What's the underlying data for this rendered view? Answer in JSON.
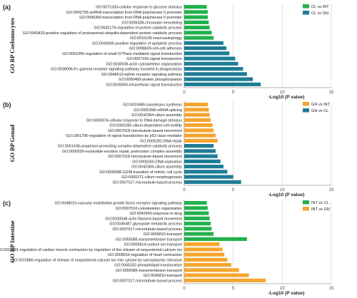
{
  "chart_data": [
    {
      "type": "bar",
      "orientation": "horizontal",
      "panel_label": "(a)",
      "title": "",
      "ylabel": "GO BP Coelomocytes",
      "xlabel": "-Log10 (P value)",
      "xlim": [
        0,
        15
      ],
      "xticks": [
        "0",
        "5",
        "10",
        "15"
      ],
      "grid": true,
      "legend_position": "top-right",
      "series": [
        {
          "name": "CL vs INT",
          "color": "#22b14c"
        },
        {
          "name": "CL vs GN",
          "color": "#1f7d96"
        }
      ],
      "bars": [
        {
          "label": "GO:0071333-cellular response to glucose stimulus",
          "value": 2.3,
          "series": 0
        },
        {
          "label": "GO:0042795-snRNA transcription from RNA polymerase II promoter",
          "value": 2.4,
          "series": 0
        },
        {
          "label": "GO:0006366-transcription from RNA polymerase II promoter",
          "value": 2.4,
          "series": 0
        },
        {
          "label": "GO:0006338-chromatin remodeling",
          "value": 2.5,
          "series": 0
        },
        {
          "label": "GO:0042176-regulation of protein catabolic process",
          "value": 2.6,
          "series": 0
        },
        {
          "label": "GO:0043433-positive regulation of proteasomal ubiquitin-dependent protein catabolic process",
          "value": 2.8,
          "series": 0
        },
        {
          "label": "GO:0016236-macroautophagy",
          "value": 3.0,
          "series": 0
        },
        {
          "label": "GO:0043065-positive regulation of apoptotic process",
          "value": 4.0,
          "series": 1
        },
        {
          "label": "GO:0098609-cell-cell adhesion",
          "value": 4.3,
          "series": 1
        },
        {
          "label": "GO:0051056-regulation of small GTPase mediated signal transduction",
          "value": 4.6,
          "series": 1
        },
        {
          "label": "GO:0007165-signal transduction",
          "value": 5.2,
          "series": 1
        },
        {
          "label": "GO:0030036-actin cytoskeleton organization",
          "value": 5.5,
          "series": 1
        },
        {
          "label": "GO:0038096-Fc-gamma receptor signaling pathway involved in phagocytosis",
          "value": 6.0,
          "series": 1
        },
        {
          "label": "GO:0048013-ephrin receptor signaling pathway",
          "value": 6.4,
          "series": 1
        },
        {
          "label": "GO:0006468-protein phosphorylation",
          "value": 7.0,
          "series": 1
        },
        {
          "label": "GO:0035556-intracellular signal transduction",
          "value": 7.8,
          "series": 1
        }
      ]
    },
    {
      "type": "bar",
      "orientation": "horizontal",
      "panel_label": "(b)",
      "title": "",
      "ylabel": "GO BP Gonad",
      "xlabel": "-Log10 (P value)",
      "xlim": [
        0,
        15
      ],
      "xticks": [
        "0",
        "5",
        "10",
        "15"
      ],
      "grid": true,
      "legend_position": "top-right",
      "series": [
        {
          "name": "GN vs INT",
          "color": "#f5a530"
        },
        {
          "name": "GN vs CL",
          "color": "#1f7d96"
        }
      ],
      "bars": [
        {
          "label": "GO:0019985-translesion synthesis",
          "value": 2.4,
          "series": 0
        },
        {
          "label": "GO:0000398-mRNA splicing",
          "value": 2.5,
          "series": 0
        },
        {
          "label": "GO:0042384-cilium assembly",
          "value": 2.6,
          "series": 0
        },
        {
          "label": "GO:0006974-cellular response to DNA damage stimulus",
          "value": 2.7,
          "series": 0
        },
        {
          "label": "GO:0060285-cilium-dependent cell motility",
          "value": 2.9,
          "series": 0
        },
        {
          "label": "GO:0007018-microtubule-based movement",
          "value": 3.0,
          "series": 0
        },
        {
          "label": "GO:1901796-regulation of signal transduction by p53 class mediator",
          "value": 3.2,
          "series": 0
        },
        {
          "label": "GO:0006281-DNA repair",
          "value": 3.4,
          "series": 0
        },
        {
          "label": "GO:0051438-anaphase-promoting complex-dependent catabolic process",
          "value": 3.0,
          "series": 1
        },
        {
          "label": "GO:0000209-nucleotide-excision repair, preincision complex assembly",
          "value": 3.2,
          "series": 1
        },
        {
          "label": "GO:0007018-microtubule-based movement",
          "value": 3.4,
          "series": 1
        },
        {
          "label": "GO:0006260-DNA replication",
          "value": 3.7,
          "series": 1
        },
        {
          "label": "GO:0042384-cilium assembly",
          "value": 4.0,
          "series": 1
        },
        {
          "label": "GO:0000086-G2/M transition of mitotic cell cycle",
          "value": 4.4,
          "series": 1
        },
        {
          "label": "GO:0060271-cilium morphogenesis",
          "value": 5.0,
          "series": 1
        },
        {
          "label": "GO:0007017-microtubule-based process",
          "value": 5.8,
          "series": 1
        }
      ]
    },
    {
      "type": "bar",
      "orientation": "horizontal",
      "panel_label": "(c)",
      "title": "",
      "ylabel": "GO BP Intestine",
      "xlabel": "-Log10 (P value)",
      "xlim": [
        0,
        15
      ],
      "xticks": [
        "0",
        "5",
        "10",
        "15"
      ],
      "grid": true,
      "legend_position": "top-right",
      "series": [
        {
          "name": "INT vs CL",
          "color": "#22b14c"
        },
        {
          "name": "INT vs GN",
          "color": "#f5a530"
        }
      ],
      "bars": [
        {
          "label": "GO:0048010-vascular endothelial growth factor receptor signaling pathway",
          "value": 2.3,
          "series": 0
        },
        {
          "label": "GO:0007010-cytoskeleton organization",
          "value": 2.4,
          "series": 0
        },
        {
          "label": "GO:0042493-response to drug",
          "value": 2.5,
          "series": 0
        },
        {
          "label": "GO:0030048-actin filament-based movement",
          "value": 2.6,
          "series": 0
        },
        {
          "label": "GO:0046487-glyoxylate metabolic process",
          "value": 2.7,
          "series": 0
        },
        {
          "label": "GO:0007017-microtubule-based process",
          "value": 2.8,
          "series": 0
        },
        {
          "label": "GO:0006810-transport",
          "value": 3.0,
          "series": 0
        },
        {
          "label": "GO:0055085-transmembrane transport",
          "value": 6.4,
          "series": 0
        },
        {
          "label": "GO:0006814-sodium ion transport",
          "value": 3.6,
          "series": 1
        },
        {
          "label": "GO:0010881-regulation of cardiac muscle contraction by regulation of the release of sequestered calcium ion",
          "value": 3.9,
          "series": 1
        },
        {
          "label": "GO:0008016-regulation of heart contraction",
          "value": 4.1,
          "series": 1
        },
        {
          "label": "GO:0010880-regulation of release of sequestered calcium ion into cytosol by sarcoplasmic reticulum",
          "value": 4.4,
          "series": 1
        },
        {
          "label": "GO:0045332-phospholipid translocation",
          "value": 4.8,
          "series": 1
        },
        {
          "label": "GO:0055085-transmembrane transport",
          "value": 5.6,
          "series": 1
        },
        {
          "label": "GO:0006810-transport",
          "value": 6.6,
          "series": 1
        },
        {
          "label": "GO:0007017-microtubule-based process",
          "value": 8.3,
          "series": 1
        }
      ]
    }
  ]
}
